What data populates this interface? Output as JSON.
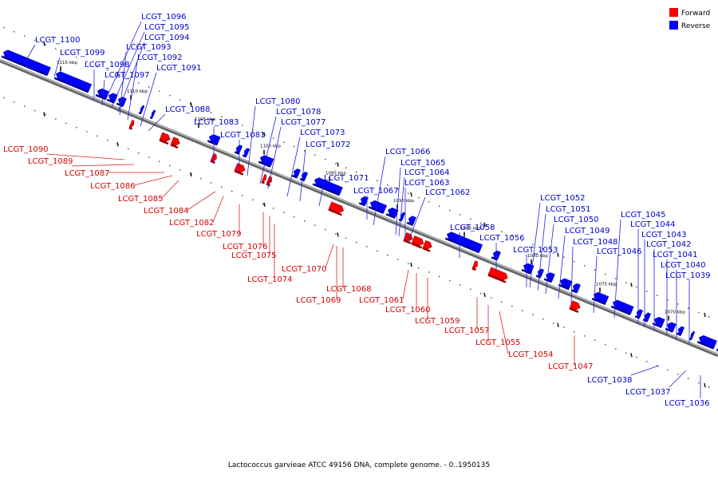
{
  "caption": "Lactococcus garvieae ATCC 49156 DNA, complete genome. - 0..1950135",
  "legend": [
    {
      "label": "Forward",
      "color": "#ff0000"
    },
    {
      "label": "Reverse",
      "color": "#0000ff"
    }
  ],
  "colors": {
    "forward": "#ff0000",
    "reverse": "#0000ff",
    "backbone": "#888888"
  },
  "ticks": [
    "1115 kbp",
    "1110 kbp",
    "1105 kbp",
    "1100 kbp",
    "1095 kbp",
    "1090 kbp",
    "1085 kbp",
    "1080 kbp",
    "1075 kbp",
    "1070 kbp"
  ],
  "reverse_genes": [
    "LCGT_1100",
    "LCGT_1099",
    "LCGT_1098",
    "LCGT_1097",
    "LCGT_1096",
    "LCGT_1095",
    "LCGT_1094",
    "LCGT_1093",
    "LCGT_1092",
    "LCGT_1091",
    "LCGT_1088",
    "LCGT_1083",
    "LCGT_1081",
    "LCGT_1080",
    "LCGT_1078",
    "LCGT_1077",
    "LCGT_1073",
    "LCGT_1072",
    "LCGT_1071",
    "LCGT_1067",
    "LCGT_1066",
    "LCGT_1065",
    "LCGT_1064",
    "LCGT_1063",
    "LCGT_1062",
    "LCGT_1058",
    "LCGT_1056",
    "LCGT_1053",
    "LCGT_1052",
    "LCGT_1051",
    "LCGT_1050",
    "LCGT_1049",
    "LCGT_1048",
    "LCGT_1046",
    "LCGT_1045",
    "LCGT_1044",
    "LCGT_1043",
    "LCGT_1042",
    "LCGT_1041",
    "LCGT_1040",
    "LCGT_1039",
    "LCGT_1038",
    "LCGT_1037",
    "LCGT_1036"
  ],
  "forward_genes": [
    "LCGT_1090",
    "LCGT_1089",
    "LCGT_1087",
    "LCGT_1086",
    "LCGT_1085",
    "LCGT_1084",
    "LCGT_1082",
    "LCGT_1079",
    "LCGT_1076",
    "LCGT_1075",
    "LCGT_1074",
    "LCGT_1070",
    "LCGT_1069",
    "LCGT_1068",
    "LCGT_1061",
    "LCGT_1060",
    "LCGT_1059",
    "LCGT_1057",
    "LCGT_1055",
    "LCGT_1054",
    "LCGT_1047"
  ]
}
